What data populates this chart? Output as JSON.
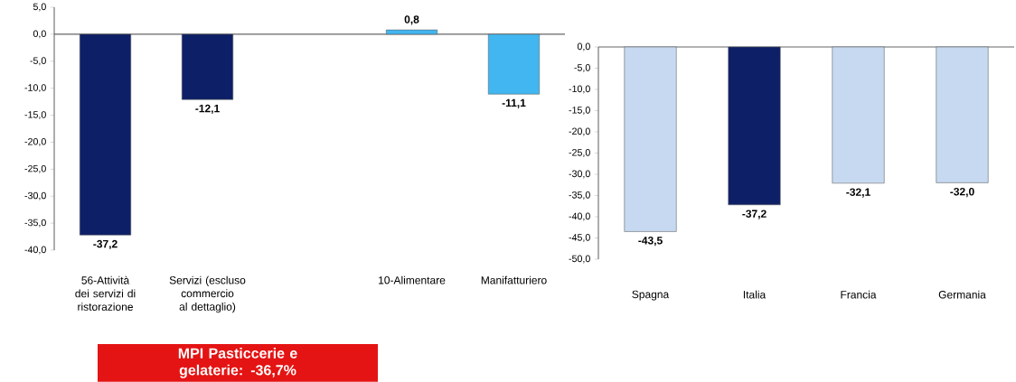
{
  "chart_data": [
    {
      "type": "bar",
      "categories": [
        "56-Attività dei servizi di ristorazione",
        "Servizi (escluso commercio al dettaglio)",
        null,
        "10-Alimentare",
        "Manifatturiero"
      ],
      "values": [
        -37.2,
        -12.1,
        null,
        0.8,
        -11.1
      ],
      "colors": [
        "#0d1f66",
        "#0d1f66",
        "#0d1f66",
        "#41b6f0",
        "#41b6f0"
      ],
      "value_labels": [
        "-37,2",
        "-12,1",
        null,
        "0,8",
        "-11,1"
      ],
      "ylim": [
        -40,
        5
      ],
      "yticks": [
        {
          "value": 5,
          "label": "5,0"
        },
        {
          "value": 0,
          "label": "0,0"
        },
        {
          "value": -5,
          "label": "-5,0"
        },
        {
          "value": -10,
          "label": "-10,0"
        },
        {
          "value": -15,
          "label": "-15,0"
        },
        {
          "value": -20,
          "label": "-20,0"
        },
        {
          "value": -25,
          "label": "-25,0"
        },
        {
          "value": -30,
          "label": "-30,0"
        },
        {
          "value": -35,
          "label": "-35,0"
        },
        {
          "value": -40,
          "label": "-40,0"
        }
      ],
      "annotations": [
        "MPI Pasticcerie e gelaterie: -36,7%"
      ]
    },
    {
      "type": "bar",
      "categories": [
        "Spagna",
        "Italia",
        "Francia",
        "Germania"
      ],
      "values": [
        -43.5,
        -37.2,
        -32.1,
        -32.0
      ],
      "colors": [
        "#c6d9f0",
        "#0d1f66",
        "#c6d9f0",
        "#c6d9f0"
      ],
      "value_labels": [
        "-43,5",
        "-37,2",
        "-32,1",
        "-32,0"
      ],
      "ylim": [
        -50,
        0
      ],
      "yticks": [
        {
          "value": 0,
          "label": "0,0"
        },
        {
          "value": -5,
          "label": "-5,0"
        },
        {
          "value": -10,
          "label": "-10,0"
        },
        {
          "value": -15,
          "label": "-15,0"
        },
        {
          "value": -20,
          "label": "-20,0"
        },
        {
          "value": -25,
          "label": "-25,0"
        },
        {
          "value": -30,
          "label": "-30,0"
        },
        {
          "value": -35,
          "label": "-35,0"
        },
        {
          "value": -40,
          "label": "-40,0"
        },
        {
          "value": -45,
          "label": "-45,0"
        },
        {
          "value": -50,
          "label": "-50,0"
        }
      ]
    }
  ]
}
